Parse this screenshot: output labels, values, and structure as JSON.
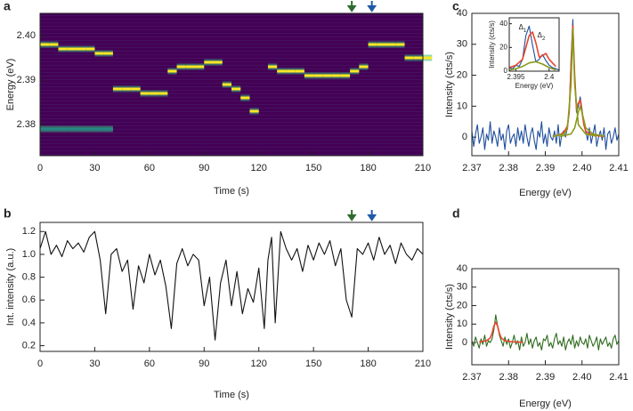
{
  "chart_data": [
    {
      "type": "heatmap",
      "panel_label": "a",
      "xlabel": "Time (s)",
      "ylabel": "Energy (eV)",
      "xlim": [
        0,
        210
      ],
      "xticks": [
        0,
        30,
        60,
        90,
        120,
        150,
        180,
        210
      ],
      "ylim": [
        2.373,
        2.405
      ],
      "yticks": [
        2.38,
        2.39,
        {
          "value": 2.4,
          "label": "2.40"
        }
      ],
      "markers": [
        {
          "x": 171,
          "color": "#2e6b2e"
        },
        {
          "x": 182,
          "color": "#1f5aa6"
        }
      ],
      "series": [
        {
          "color": "#fde725",
          "x": [
            0,
            5,
            10,
            15,
            20,
            25,
            30,
            35,
            40,
            45,
            50,
            55,
            60,
            65,
            70,
            75,
            80,
            85,
            90,
            95,
            100,
            105,
            110,
            115,
            120,
            125,
            130,
            135,
            140,
            145,
            150,
            155,
            160,
            165,
            170,
            175,
            180,
            185,
            190,
            195,
            200,
            205,
            210
          ],
          "values": [
            2.398,
            2.398,
            2.397,
            2.397,
            2.397,
            2.397,
            2.396,
            2.396,
            2.388,
            2.388,
            2.388,
            2.387,
            2.387,
            2.387,
            2.392,
            2.393,
            2.393,
            2.393,
            2.394,
            2.394,
            2.389,
            2.388,
            2.386,
            2.383,
            null,
            2.393,
            2.392,
            2.392,
            2.392,
            2.391,
            2.391,
            2.391,
            2.391,
            2.391,
            2.392,
            2.393,
            2.398,
            2.398,
            2.398,
            2.398,
            2.395,
            2.395,
            2.395
          ]
        },
        {
          "color": "#21918c",
          "x": [
            0,
            5,
            10,
            15,
            20,
            25,
            30,
            35
          ],
          "values": [
            2.379,
            2.379,
            2.379,
            2.379,
            2.379,
            2.379,
            2.379,
            2.379
          ]
        }
      ]
    },
    {
      "type": "line",
      "panel_label": "b",
      "xlabel": "Time (s)",
      "ylabel": "Int. intensity (a.u.)",
      "xlim": [
        0,
        210
      ],
      "xticks": [
        0,
        30,
        60,
        90,
        120,
        150,
        180,
        210
      ],
      "ylim": [
        0.15,
        1.28
      ],
      "yticks": [
        0.2,
        0.4,
        0.6,
        0.8,
        {
          "value": 1,
          "label": "1.0"
        },
        1.2
      ],
      "markers": [
        {
          "x": 171,
          "color": "#2e6b2e"
        },
        {
          "x": 182,
          "color": "#1f5aa6"
        }
      ],
      "series": [
        {
          "color": "#111111",
          "x": [
            0,
            3,
            6,
            9,
            12,
            15,
            18,
            21,
            24,
            27,
            30,
            33,
            36,
            39,
            42,
            45,
            48,
            51,
            54,
            57,
            60,
            63,
            66,
            69,
            72,
            75,
            78,
            81,
            84,
            87,
            90,
            93,
            96,
            99,
            102,
            105,
            108,
            111,
            114,
            117,
            120,
            123,
            125,
            127,
            129,
            132,
            135,
            138,
            141,
            144,
            147,
            150,
            153,
            156,
            159,
            162,
            165,
            168,
            171,
            174,
            177,
            180,
            183,
            186,
            189,
            192,
            195,
            198,
            201,
            204,
            207,
            210
          ],
          "values": [
            1.05,
            1.2,
            1.0,
            1.08,
            0.98,
            1.12,
            1.05,
            1.1,
            1.02,
            1.15,
            1.2,
            0.95,
            0.48,
            1.0,
            1.05,
            0.85,
            0.95,
            0.52,
            0.9,
            0.75,
            1.0,
            0.82,
            0.95,
            0.72,
            0.35,
            0.92,
            1.05,
            0.9,
            1.0,
            0.95,
            0.55,
            0.8,
            0.25,
            0.75,
            0.95,
            0.55,
            0.85,
            0.48,
            0.7,
            0.58,
            0.88,
            0.35,
            0.95,
            1.15,
            0.4,
            1.2,
            1.05,
            0.95,
            1.05,
            0.85,
            1.08,
            0.95,
            1.1,
            1.0,
            1.12,
            0.9,
            1.05,
            0.6,
            0.45,
            1.05,
            1.0,
            1.1,
            0.95,
            1.15,
            1.0,
            1.08,
            0.92,
            1.1,
            1.0,
            0.95,
            1.05,
            1.0
          ]
        }
      ]
    },
    {
      "type": "line",
      "panel_label": "c",
      "xlabel": "Energy (eV)",
      "ylabel": "Intensity (cts/s)",
      "xlim": [
        2.37,
        2.41
      ],
      "xticks": [
        2.37,
        2.38,
        2.39,
        {
          "value": 2.4,
          "label": "2.40"
        },
        2.41
      ],
      "ylim": [
        -6,
        40
      ],
      "yticks": [
        0,
        10,
        20,
        30,
        40
      ],
      "series": [
        {
          "color": "#1f4e9c",
          "x": [
            2.37,
            2.3705,
            2.371,
            2.3715,
            2.372,
            2.3725,
            2.373,
            2.3735,
            2.374,
            2.3745,
            2.375,
            2.3755,
            2.376,
            2.3765,
            2.377,
            2.3775,
            2.378,
            2.3785,
            2.379,
            2.3795,
            2.38,
            2.3805,
            2.381,
            2.3815,
            2.382,
            2.3825,
            2.383,
            2.3835,
            2.384,
            2.3845,
            2.385,
            2.3855,
            2.386,
            2.3865,
            2.387,
            2.3875,
            2.388,
            2.3885,
            2.389,
            2.3895,
            2.39,
            2.3905,
            2.391,
            2.3915,
            2.392,
            2.3925,
            2.393,
            2.3935,
            2.394,
            2.3945,
            2.395,
            2.3955,
            2.396,
            2.3965,
            2.397,
            2.3975,
            2.398,
            2.3985,
            2.399,
            2.3995,
            2.4,
            2.4005,
            2.401,
            2.4015,
            2.402,
            2.4025,
            2.403,
            2.4035,
            2.404,
            2.4045,
            2.405,
            2.4055,
            2.406,
            2.4065,
            2.407,
            2.4075,
            2.408,
            2.4085,
            2.409,
            2.4095,
            2.41
          ],
          "values": [
            2,
            -3,
            1,
            4,
            -2,
            0,
            3,
            -4,
            1,
            -1,
            5,
            -2,
            2,
            0,
            -3,
            3,
            -1,
            1,
            -4,
            2,
            4,
            -2,
            0,
            1,
            -3,
            3,
            -1,
            2,
            -2,
            4,
            0,
            -3,
            1,
            3,
            -1,
            -4,
            2,
            0,
            5,
            -2,
            1,
            -3,
            3,
            0,
            -1,
            2,
            -2,
            4,
            -3,
            1,
            2,
            0,
            3,
            8,
            25,
            38,
            18,
            8,
            10,
            13,
            9,
            4,
            2,
            -1,
            3,
            -2,
            1,
            4,
            -3,
            0,
            2,
            -1,
            3,
            -4,
            1,
            2,
            -2,
            0,
            3,
            -1,
            1
          ]
        },
        {
          "color": "#e8452c",
          "x": [
            2.392,
            2.394,
            2.395,
            2.396,
            2.3965,
            2.397,
            2.3975,
            2.398,
            2.3985,
            2.399,
            2.3995,
            2.4,
            2.4005,
            2.401,
            2.402,
            2.404,
            2.406
          ],
          "values": [
            0.3,
            0.8,
            1.5,
            3.5,
            8,
            22,
            36,
            20,
            9,
            11,
            12,
            8,
            4,
            2,
            1,
            0.5,
            0.2
          ]
        },
        {
          "color": "#8a9a1a",
          "x": [
            2.392,
            2.395,
            2.396,
            2.397,
            2.3975,
            2.398,
            2.399,
            2.401,
            2.404
          ],
          "values": [
            0.2,
            1,
            2.5,
            17,
            35,
            17,
            4,
            1,
            0.3
          ]
        },
        {
          "color": "#8a9a1a",
          "x": [
            2.394,
            2.397,
            2.398,
            2.399,
            2.3995,
            2.4,
            2.401,
            2.403,
            2.406
          ],
          "values": [
            0.2,
            1,
            3,
            8,
            10,
            8,
            3,
            1,
            0.3
          ]
        }
      ],
      "inset": {
        "xlabel": "Energy (eV)",
        "ylabel": "Intensity (cts/s)",
        "xlim": [
          2.394,
          2.4015
        ],
        "xticks": [
          2.395,
          2.4
        ],
        "ylim": [
          0,
          45
        ],
        "yticks": [
          0,
          20,
          40
        ],
        "annotations": [
          {
            "text": "Δ",
            "subscript": "1"
          },
          {
            "text": "Δ",
            "subscript": "2"
          }
        ],
        "series": [
          {
            "color": "#1f4e9c",
            "x": [
              2.394,
              2.3945,
              2.395,
              2.3955,
              2.396,
              2.3965,
              2.397,
              2.3975,
              2.398,
              2.3985,
              2.399,
              2.3995,
              2.4,
              2.4005,
              2.401,
              2.4015
            ],
            "values": [
              3,
              2,
              5,
              4,
              10,
              30,
              38,
              22,
              8,
              10,
              14,
              9,
              5,
              3,
              2,
              1
            ]
          },
          {
            "color": "#e8452c",
            "x": [
              2.394,
              2.395,
              2.396,
              2.3965,
              2.397,
              2.3975,
              2.398,
              2.3985,
              2.399,
              2.3995,
              2.4,
              2.401
            ],
            "values": [
              3,
              5,
              10,
              20,
              30,
              33,
              24,
              12,
              13,
              15,
              10,
              4
            ]
          },
          {
            "color": "#8a9a1a",
            "x": [
              2.394,
              2.395,
              2.396,
              2.397,
              2.398,
              2.399,
              2.4,
              2.401
            ],
            "values": [
              1,
              2,
              4,
              7,
              8,
              6,
              3,
              1
            ]
          }
        ]
      }
    },
    {
      "type": "line",
      "panel_label": "d",
      "xlabel": "Energy (eV)",
      "ylabel": "Intensity (cts/s)",
      "xlim": [
        2.37,
        2.41
      ],
      "xticks": [
        2.37,
        2.38,
        2.39,
        {
          "value": 2.4,
          "label": "2.40"
        },
        2.41
      ],
      "ylim": [
        -12,
        40
      ],
      "yticks": [
        0,
        10,
        20,
        30,
        40
      ],
      "series": [
        {
          "color": "#2e6b1e",
          "x": [
            2.37,
            2.3705,
            2.371,
            2.3715,
            2.372,
            2.3725,
            2.373,
            2.3735,
            2.374,
            2.3745,
            2.375,
            2.3755,
            2.376,
            2.3765,
            2.377,
            2.3775,
            2.378,
            2.3785,
            2.379,
            2.3795,
            2.38,
            2.3805,
            2.381,
            2.3815,
            2.382,
            2.3825,
            2.383,
            2.3835,
            2.384,
            2.3845,
            2.385,
            2.3855,
            2.386,
            2.3865,
            2.387,
            2.3875,
            2.388,
            2.3885,
            2.389,
            2.3895,
            2.39,
            2.3905,
            2.391,
            2.3915,
            2.392,
            2.3925,
            2.393,
            2.3935,
            2.394,
            2.3945,
            2.395,
            2.3955,
            2.396,
            2.3965,
            2.397,
            2.3975,
            2.398,
            2.3985,
            2.399,
            2.3995,
            2.4,
            2.4005,
            2.401,
            2.4015,
            2.402,
            2.4025,
            2.403,
            2.4035,
            2.404,
            2.4045,
            2.405,
            2.4055,
            2.406,
            2.4065,
            2.407,
            2.4075,
            2.408,
            2.4085,
            2.409,
            2.4095,
            2.41
          ],
          "values": [
            1,
            -2,
            3,
            0,
            -3,
            2,
            -1,
            4,
            -2,
            1,
            0,
            2,
            7,
            15,
            9,
            4,
            1,
            -2,
            3,
            -1,
            2,
            -3,
            0,
            4,
            -1,
            1,
            -4,
            3,
            -2,
            0,
            5,
            -1,
            2,
            -3,
            1,
            3,
            -2,
            0,
            -4,
            2,
            1,
            4,
            -2,
            0,
            -3,
            2,
            5,
            -1,
            1,
            -2,
            3,
            -4,
            0,
            2,
            -1,
            4,
            -3,
            1,
            -2,
            3,
            0,
            -1,
            2,
            -3,
            4,
            1,
            -2,
            0,
            3,
            -4,
            2,
            -1,
            1,
            3,
            -2,
            0,
            -3,
            2,
            4,
            -1,
            1
          ]
        },
        {
          "color": "#e8452c",
          "x": [
            2.372,
            2.374,
            2.375,
            2.3755,
            2.376,
            2.3765,
            2.377,
            2.3775,
            2.378,
            2.379,
            2.381,
            2.384
          ],
          "values": [
            0.3,
            1,
            2.5,
            5,
            9,
            11,
            9,
            5,
            2.5,
            1,
            0.4,
            0.2
          ]
        }
      ]
    }
  ]
}
